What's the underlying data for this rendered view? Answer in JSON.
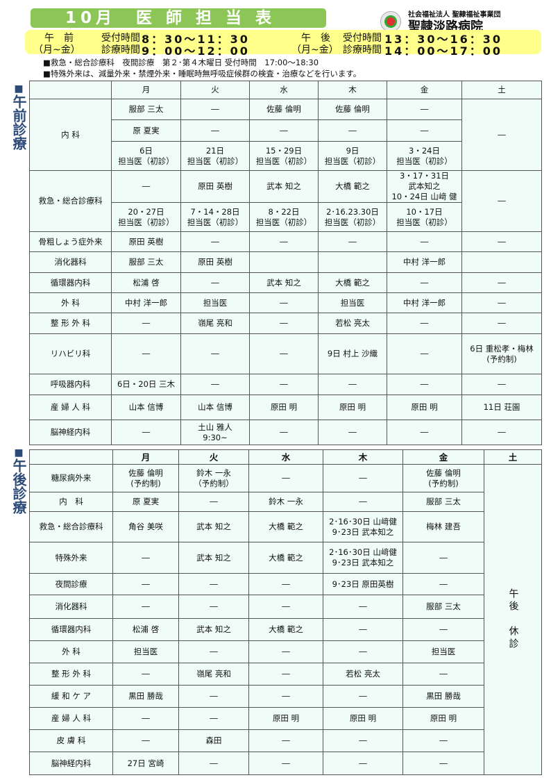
{
  "header": {
    "title": "10月　医 師 担 当 表",
    "org": "社会福祉法人 聖隷福祉事業団",
    "hospital": "聖隷淡路病院"
  },
  "hours": {
    "am_label": "午　前",
    "am_days": "（月~金）",
    "reception": "受付時間",
    "consult": "診療時間",
    "am_reception": "8：30～11：30",
    "am_consult": "9：00～12：00",
    "pm_label": "午　後",
    "pm_days": "（月~金）",
    "pm_reception": "13：30～16：30",
    "pm_consult": "14：00～17：00"
  },
  "notes": [
    "■救急・総合診療科　夜間診療　第２･第４木曜日 受付時間　17:00～18:30",
    "■特殊外来は、減量外来・禁煙外来・睡眠時無呼吸症候群の検査・治療などを行います。"
  ],
  "am": {
    "side": "午前診療",
    "days": [
      "",
      "月",
      "火",
      "水",
      "木",
      "金",
      "土"
    ],
    "rows": [
      [
        "内 科",
        "服部 三太",
        "―",
        "佐藤 倫明",
        "佐藤 倫明",
        "―",
        "―"
      ],
      [
        "原 夏実",
        "―",
        "―",
        "―",
        "―"
      ],
      [
        "6日\n担当医（初診）",
        "21日\n担当医（初診）",
        "15・29日\n担当医（初診）",
        "9日\n担当医（初診）",
        "3・24日\n担当医（初診）"
      ],
      [
        "救急・総合診療科",
        "―",
        "原田 英樹",
        "武本 知之",
        "大橋 範之",
        "3・17・31日\n武本知之\n10・24日 山﨑 健",
        "―"
      ],
      [
        "20・27日\n担当医（初診）",
        "7・14・28日\n担当医（初診）",
        "8・22日\n担当医（初診）",
        "2･16.23.30日\n担当医（初診）",
        "10・17日\n担当医（初診）"
      ],
      [
        "骨粗しょう症外来",
        "原田 英樹",
        "―",
        "―",
        "―",
        "―",
        "―"
      ],
      [
        "消化器科",
        "服部 三太",
        "原田 英樹",
        "",
        "",
        "中村 洋一郎",
        ""
      ],
      [
        "循環器内科",
        "松浦 啓",
        "―",
        "武本 知之",
        "大橋 範之",
        "―",
        "―"
      ],
      [
        "外 科",
        "中村 洋一郎",
        "担当医",
        "―",
        "担当医",
        "中村 洋一郎",
        "―"
      ],
      [
        "整 形 外 科",
        "―",
        "嶺尾 亮和",
        "―",
        "若松 亮太",
        "―",
        "―"
      ],
      [
        "リハビリ科",
        "―",
        "―",
        "―",
        "9日 村上 沙織",
        "―",
        "6日 重松孝・梅林\n(予約制)"
      ],
      [
        "呼吸器内科",
        "6日・20日 三木",
        "―",
        "―",
        "―",
        "―",
        "―"
      ],
      [
        "産 婦 人 科",
        "山本 信博",
        "山本 信博",
        "原田 明",
        "原田 明",
        "原田 明",
        "11日 荘園"
      ],
      [
        "脳神経内科",
        "―",
        "土山 雅人\n9:30~",
        "―",
        "―",
        "―",
        "―"
      ]
    ]
  },
  "pm": {
    "side": "午後診療",
    "days": [
      "",
      "月",
      "火",
      "水",
      "木",
      "金",
      "土"
    ],
    "rows": [
      [
        "糖尿病外来",
        "佐藤 倫明\n(予約制)",
        "鈴木 一永\n（予約制）",
        "―",
        "―",
        "佐藤 倫明\n(予約制)",
        "午後　休診"
      ],
      [
        "内　科",
        "原 夏実",
        "―",
        "鈴木 一永",
        "―",
        "服部 三太"
      ],
      [
        "救急・総合診療科",
        "角谷 美咲",
        "武本 知之",
        "大橋 範之",
        "2･16･30日 山﨑健\n9･23日 武本知之",
        "梅林 建吾"
      ],
      [
        "特殊外来",
        "―",
        "武本 知之",
        "大橋 範之",
        "2･16･30日 山﨑健\n9･23日 武本知之",
        "―"
      ],
      [
        "夜間診療",
        "―",
        "―",
        "―",
        "9･23日 原田英樹",
        "―"
      ],
      [
        "消化器科",
        "―",
        "―",
        "―",
        "―",
        "服部 三太"
      ],
      [
        "循環器内科",
        "松浦 啓",
        "武本 知之",
        "大橋 範之",
        "―",
        "―"
      ],
      [
        "外 科",
        "担当医",
        "―",
        "―",
        "―",
        "担当医"
      ],
      [
        "整 形 外 科",
        "―",
        "嶺尾 亮和",
        "―",
        "若松 亮太",
        "―"
      ],
      [
        "緩 和 ケ ア",
        "黒田 勝哉",
        "―",
        "―",
        "―",
        "黒田 勝哉"
      ],
      [
        "産 婦 人 科",
        "―",
        "―",
        "原田 明",
        "原田 明",
        "原田 明"
      ],
      [
        "皮 膚 科",
        "―",
        "森田",
        "―",
        "―",
        "―"
      ],
      [
        "脳神経内科",
        "27日 宮崎",
        "―",
        "―",
        "―",
        "―"
      ]
    ]
  },
  "colors": {
    "title_bg": "#8cc657",
    "hours_bg": "#ffff8c",
    "cell_bg": "#effcf8",
    "side_text": "#2b4a78"
  }
}
